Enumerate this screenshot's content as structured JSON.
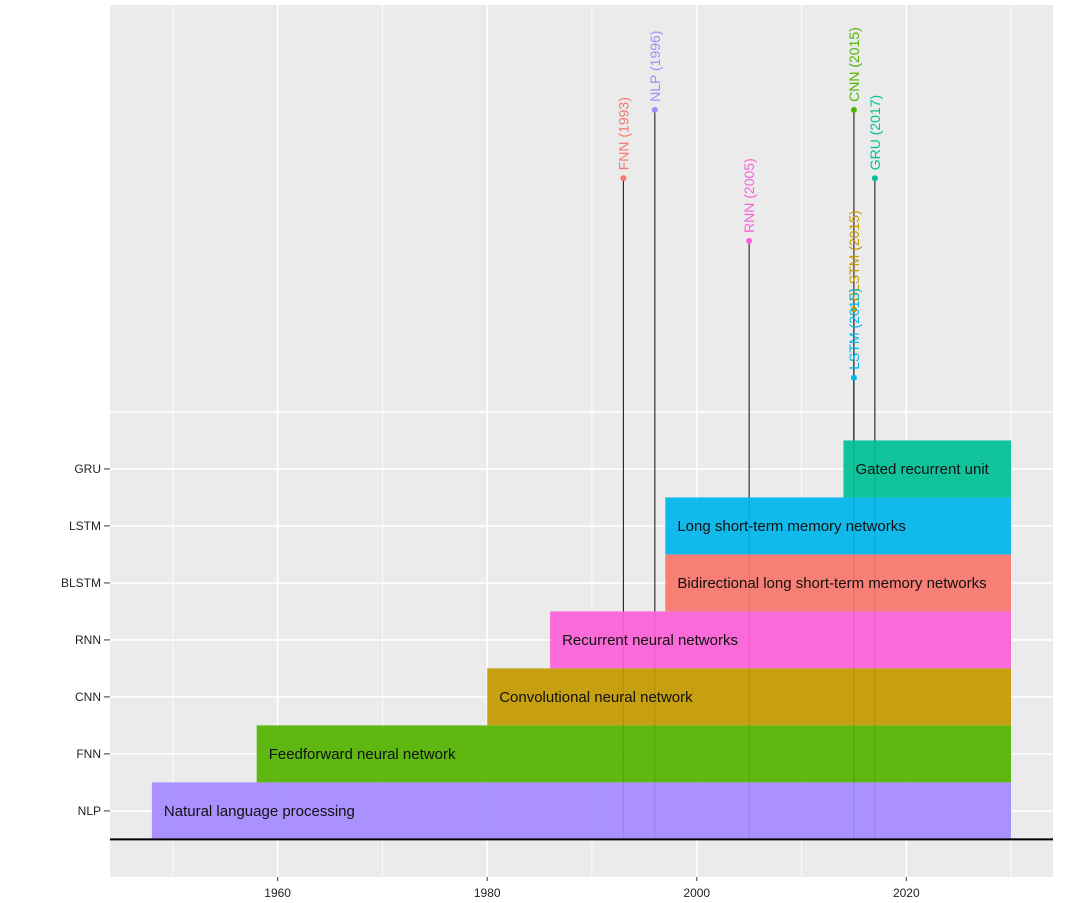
{
  "chart_data": {
    "type": "timeline-bar-lollipop",
    "xlabel": "",
    "ylabel": "",
    "xlim": [
      1944,
      2034
    ],
    "ylim": [
      -0.16,
      15.14
    ],
    "x_ticks": [
      1960,
      1980,
      2000,
      2020
    ],
    "grid": true,
    "baseline_y": 0.5,
    "bars": [
      {
        "category": "NLP",
        "label": "Natural language processing",
        "start": 1948,
        "end": 2030,
        "color": "#A58AFF"
      },
      {
        "category": "FNN",
        "label": "Feedforward neural network",
        "start": 1958,
        "end": 2030,
        "color": "#53B400"
      },
      {
        "category": "CNN",
        "label": "Convolutional neural network",
        "start": 1980,
        "end": 2030,
        "color": "#C49A00"
      },
      {
        "category": "RNN",
        "label": "Recurrent neural networks",
        "start": 1986,
        "end": 2030,
        "color": "#FB61D7"
      },
      {
        "category": "BLSTM",
        "label": "Bidirectional long short-term memory networks",
        "start": 1997,
        "end": 2030,
        "color": "#F8766D"
      },
      {
        "category": "LSTM",
        "label": "Long short-term memory networks",
        "start": 1997,
        "end": 2030,
        "color": "#00B6EB"
      },
      {
        "category": "GRU",
        "label": "Gated recurrent unit",
        "start": 2014,
        "end": 2030,
        "color": "#00C094"
      }
    ],
    "milestones": [
      {
        "label": "FNN (1993)",
        "year": 1993,
        "height": 12.1,
        "color": "#F8766D"
      },
      {
        "label": "NLP (1996)",
        "year": 1996,
        "height": 13.3,
        "color": "#A58AFF"
      },
      {
        "label": "RNN (2005)",
        "year": 2005,
        "height": 11.0,
        "color": "#FB61D7"
      },
      {
        "label": "CNN (2015)",
        "year": 2015,
        "height": 13.3,
        "color": "#53B400"
      },
      {
        "label": "GRU (2017)",
        "year": 2017,
        "height": 12.1,
        "color": "#00C094"
      },
      {
        "label": "BLSTM (2015)",
        "year": 2015,
        "height": 9.8,
        "color": "#C49A00"
      },
      {
        "label": "LSTM (2015)",
        "year": 2015,
        "height": 8.6,
        "color": "#00B6EB"
      }
    ]
  }
}
